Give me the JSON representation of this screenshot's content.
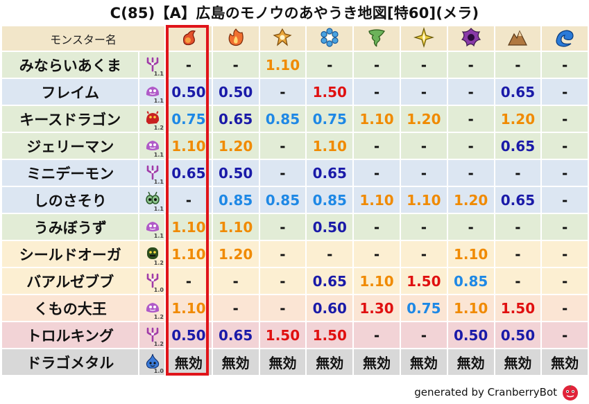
{
  "title": "C(85)【A】広島のモノウのあやうき地図[特60](メラ)",
  "header_label": "モンスター名",
  "elements": [
    {
      "name": "fire-icon",
      "color": "#e4512a"
    },
    {
      "name": "flame-icon",
      "color": "#f07030"
    },
    {
      "name": "explosion-icon",
      "color": "#e8a53a"
    },
    {
      "name": "ice-icon",
      "color": "#4aa3e0"
    },
    {
      "name": "wind-icon",
      "color": "#6cb35a"
    },
    {
      "name": "lightning-icon",
      "color": "#e8c93a"
    },
    {
      "name": "darkness-icon",
      "color": "#8a3aa8"
    },
    {
      "name": "earth-icon",
      "color": "#b07840"
    },
    {
      "name": "water-icon",
      "color": "#2a7ad8"
    }
  ],
  "rows": [
    {
      "name": "みならいあくま",
      "bg": "#e2ecd6",
      "icon": "demon-icon",
      "icon_color": "#a03aa8",
      "level": "1.1",
      "values": [
        {
          "t": "-",
          "c": "dash"
        },
        {
          "t": "-",
          "c": "dash"
        },
        {
          "t": "1.10",
          "c": "orange"
        },
        {
          "t": "-",
          "c": "dash"
        },
        {
          "t": "-",
          "c": "dash"
        },
        {
          "t": "-",
          "c": "dash"
        },
        {
          "t": "-",
          "c": "dash"
        },
        {
          "t": "-",
          "c": "dash"
        },
        {
          "t": "-",
          "c": "dash"
        }
      ]
    },
    {
      "name": "フレイム",
      "bg": "#dce6f2",
      "icon": "slime-icon",
      "icon_color": "#b05ac8",
      "level": "1.1",
      "values": [
        {
          "t": "0.50",
          "c": "blue"
        },
        {
          "t": "0.50",
          "c": "blue"
        },
        {
          "t": "-",
          "c": "dash"
        },
        {
          "t": "1.50",
          "c": "red"
        },
        {
          "t": "-",
          "c": "dash"
        },
        {
          "t": "-",
          "c": "dash"
        },
        {
          "t": "-",
          "c": "dash"
        },
        {
          "t": "0.65",
          "c": "blue"
        },
        {
          "t": "-",
          "c": "dash"
        }
      ]
    },
    {
      "name": "キースドラゴン",
      "bg": "#e2ecd6",
      "icon": "dragon-icon",
      "icon_color": "#c82020",
      "level": "1.2",
      "values": [
        {
          "t": "0.75",
          "c": "lblue"
        },
        {
          "t": "0.65",
          "c": "blue"
        },
        {
          "t": "0.85",
          "c": "lblue"
        },
        {
          "t": "0.75",
          "c": "lblue"
        },
        {
          "t": "1.10",
          "c": "orange"
        },
        {
          "t": "1.20",
          "c": "orange"
        },
        {
          "t": "-",
          "c": "dash"
        },
        {
          "t": "1.20",
          "c": "orange"
        },
        {
          "t": "-",
          "c": "dash"
        }
      ]
    },
    {
      "name": "ジェリーマン",
      "bg": "#e2ecd6",
      "icon": "slime-icon",
      "icon_color": "#b05ac8",
      "level": "1.1",
      "values": [
        {
          "t": "1.10",
          "c": "orange"
        },
        {
          "t": "1.20",
          "c": "orange"
        },
        {
          "t": "-",
          "c": "dash"
        },
        {
          "t": "1.10",
          "c": "orange"
        },
        {
          "t": "-",
          "c": "dash"
        },
        {
          "t": "-",
          "c": "dash"
        },
        {
          "t": "-",
          "c": "dash"
        },
        {
          "t": "0.65",
          "c": "blue"
        },
        {
          "t": "-",
          "c": "dash"
        }
      ]
    },
    {
      "name": "ミニデーモン",
      "bg": "#dce6f2",
      "icon": "demon-icon",
      "icon_color": "#a03aa8",
      "level": "1.1",
      "values": [
        {
          "t": "0.65",
          "c": "blue"
        },
        {
          "t": "0.50",
          "c": "blue"
        },
        {
          "t": "-",
          "c": "dash"
        },
        {
          "t": "0.65",
          "c": "blue"
        },
        {
          "t": "-",
          "c": "dash"
        },
        {
          "t": "-",
          "c": "dash"
        },
        {
          "t": "-",
          "c": "dash"
        },
        {
          "t": "-",
          "c": "dash"
        },
        {
          "t": "-",
          "c": "dash"
        }
      ]
    },
    {
      "name": "しのさそり",
      "bg": "#dce6f2",
      "icon": "insect-icon",
      "icon_color": "#2a5a2a",
      "level": "1.1",
      "values": [
        {
          "t": "-",
          "c": "dash"
        },
        {
          "t": "0.85",
          "c": "lblue"
        },
        {
          "t": "0.85",
          "c": "lblue"
        },
        {
          "t": "0.85",
          "c": "lblue"
        },
        {
          "t": "1.10",
          "c": "orange"
        },
        {
          "t": "1.10",
          "c": "orange"
        },
        {
          "t": "1.20",
          "c": "orange"
        },
        {
          "t": "0.65",
          "c": "blue"
        },
        {
          "t": "-",
          "c": "dash"
        }
      ]
    },
    {
      "name": "うみぼうず",
      "bg": "#e2ecd6",
      "icon": "slime-icon",
      "icon_color": "#b05ac8",
      "level": "1.1",
      "values": [
        {
          "t": "1.10",
          "c": "orange"
        },
        {
          "t": "1.10",
          "c": "orange"
        },
        {
          "t": "-",
          "c": "dash"
        },
        {
          "t": "0.50",
          "c": "blue"
        },
        {
          "t": "-",
          "c": "dash"
        },
        {
          "t": "-",
          "c": "dash"
        },
        {
          "t": "-",
          "c": "dash"
        },
        {
          "t": "-",
          "c": "dash"
        },
        {
          "t": "-",
          "c": "dash"
        }
      ]
    },
    {
      "name": "シールドオーガ",
      "bg": "#fcefd2",
      "icon": "ogre-icon",
      "icon_color": "#2d4d1d",
      "level": "1.2",
      "values": [
        {
          "t": "1.10",
          "c": "orange"
        },
        {
          "t": "1.20",
          "c": "orange"
        },
        {
          "t": "-",
          "c": "dash"
        },
        {
          "t": "-",
          "c": "dash"
        },
        {
          "t": "-",
          "c": "dash"
        },
        {
          "t": "-",
          "c": "dash"
        },
        {
          "t": "1.10",
          "c": "orange"
        },
        {
          "t": "-",
          "c": "dash"
        },
        {
          "t": "-",
          "c": "dash"
        }
      ]
    },
    {
      "name": "バアルゼブブ",
      "bg": "#fcefd2",
      "icon": "demon-icon",
      "icon_color": "#a03aa8",
      "level": "1.0",
      "values": [
        {
          "t": "-",
          "c": "dash"
        },
        {
          "t": "-",
          "c": "dash"
        },
        {
          "t": "-",
          "c": "dash"
        },
        {
          "t": "0.65",
          "c": "blue"
        },
        {
          "t": "1.10",
          "c": "orange"
        },
        {
          "t": "1.50",
          "c": "red"
        },
        {
          "t": "0.85",
          "c": "lblue"
        },
        {
          "t": "-",
          "c": "dash"
        },
        {
          "t": "-",
          "c": "dash"
        }
      ]
    },
    {
      "name": "くもの大王",
      "bg": "#fbe5d4",
      "icon": "slime-icon",
      "icon_color": "#b05ac8",
      "level": "1.2",
      "values": [
        {
          "t": "1.10",
          "c": "orange"
        },
        {
          "t": "-",
          "c": "dash"
        },
        {
          "t": "-",
          "c": "dash"
        },
        {
          "t": "0.60",
          "c": "blue"
        },
        {
          "t": "1.30",
          "c": "red"
        },
        {
          "t": "0.75",
          "c": "lblue"
        },
        {
          "t": "1.10",
          "c": "orange"
        },
        {
          "t": "1.50",
          "c": "red"
        },
        {
          "t": "-",
          "c": "dash"
        }
      ]
    },
    {
      "name": "トロルキング",
      "bg": "#f2d3d6",
      "icon": "demon-icon",
      "icon_color": "#a03aa8",
      "level": "1.2",
      "values": [
        {
          "t": "0.50",
          "c": "blue"
        },
        {
          "t": "0.65",
          "c": "blue"
        },
        {
          "t": "1.50",
          "c": "red"
        },
        {
          "t": "1.50",
          "c": "red"
        },
        {
          "t": "-",
          "c": "dash"
        },
        {
          "t": "-",
          "c": "dash"
        },
        {
          "t": "0.50",
          "c": "blue"
        },
        {
          "t": "0.50",
          "c": "blue"
        },
        {
          "t": "-",
          "c": "dash"
        }
      ]
    },
    {
      "name": "ドラゴメタル",
      "bg": "#d8d8d8",
      "icon": "metal-slime-icon",
      "icon_color": "#3a7ad8",
      "level": "1.0",
      "values": [
        {
          "t": "無効",
          "c": "black"
        },
        {
          "t": "無効",
          "c": "black"
        },
        {
          "t": "無効",
          "c": "black"
        },
        {
          "t": "無効",
          "c": "black"
        },
        {
          "t": "無効",
          "c": "black"
        },
        {
          "t": "無効",
          "c": "black"
        },
        {
          "t": "無効",
          "c": "black"
        },
        {
          "t": "無効",
          "c": "black"
        },
        {
          "t": "無効",
          "c": "black"
        }
      ]
    }
  ],
  "footer": "generated by CranberryBot"
}
